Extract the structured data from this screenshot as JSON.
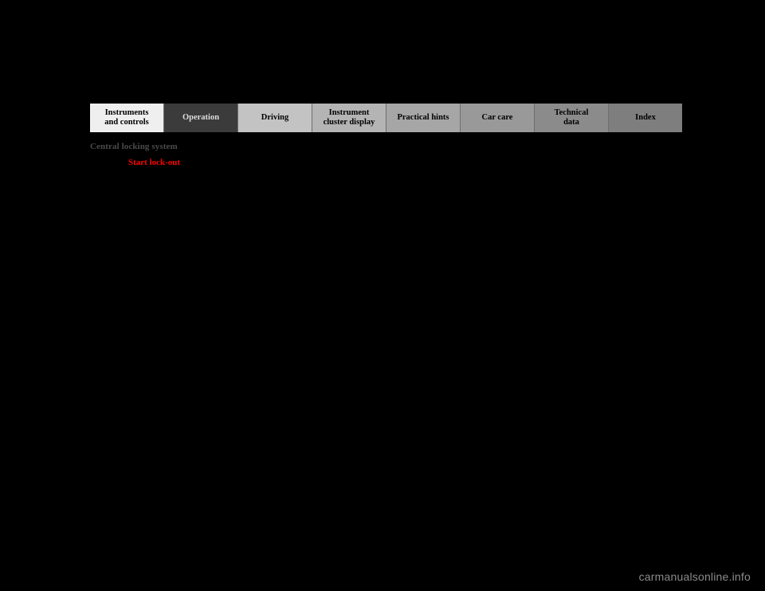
{
  "tabs": {
    "items": [
      {
        "label": "Instruments\nand controls",
        "bg": "#efefef",
        "fg": "#000000"
      },
      {
        "label": "Operation",
        "bg": "#3b3b3b",
        "fg": "#dcdcdc"
      },
      {
        "label": "Driving",
        "bg": "#c3c3c3",
        "fg": "#000000"
      },
      {
        "label": "Instrument\ncluster display",
        "bg": "#b4b4b4",
        "fg": "#000000"
      },
      {
        "label": "Practical hints",
        "bg": "#a6a6a6",
        "fg": "#000000"
      },
      {
        "label": "Car care",
        "bg": "#999999",
        "fg": "#000000"
      },
      {
        "label": "Technical\ndata",
        "bg": "#8b8b8b",
        "fg": "#000000"
      },
      {
        "label": "Index",
        "bg": "#7e7e7e",
        "fg": "#000000"
      }
    ]
  },
  "section": {
    "title": "Central locking system"
  },
  "subhead": {
    "label": "Start lock-out"
  },
  "watermark": {
    "text": "carmanualsonline.info"
  },
  "colors": {
    "page_bg": "#000000",
    "section_title_color": "#4b4b4b",
    "start_lockout_color": "#ff0000",
    "watermark_color": "#8b8b8b",
    "tab_divider_color": "#6f6f6f"
  }
}
